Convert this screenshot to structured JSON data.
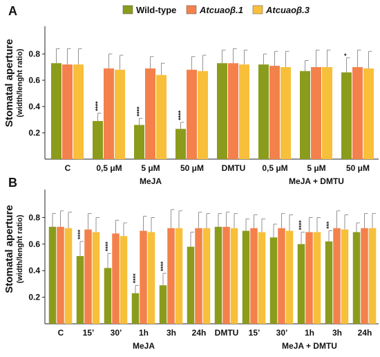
{
  "legend": {
    "placement": "top-center",
    "items": [
      {
        "label": "Wild-type",
        "italic": false,
        "color": "#8b9b1c"
      },
      {
        "label": "Atcuaoβ.1",
        "italic": true,
        "color": "#f4814c"
      },
      {
        "label": "Atcuaoβ.3",
        "italic": true,
        "color": "#f8bf3a"
      }
    ]
  },
  "chart_data": [
    {
      "type": "bar",
      "panel_label": "A",
      "ylabel": "Stomatal aperture",
      "ylabel_sub": "(width/lenght ratio)",
      "ylim": [
        0,
        1.0
      ],
      "yticks": [
        "0.2",
        "0.4",
        "0.6",
        "0.8"
      ],
      "grid": false,
      "categories": [
        "C",
        "0,5 μM",
        "5 μM",
        "50 μM",
        "DMTU",
        "0,5 μM",
        "5 μM",
        "50 μM"
      ],
      "groups": [
        {
          "label": "MeJA",
          "from": 1,
          "to": 3
        },
        {
          "label": "MeJA + DMTU",
          "from": 5,
          "to": 7
        }
      ],
      "series": [
        {
          "name": "Wild-type",
          "values": [
            0.73,
            0.29,
            0.26,
            0.23,
            0.73,
            0.72,
            0.67,
            0.66
          ],
          "errors": [
            0.11,
            0.06,
            0.05,
            0.05,
            0.1,
            0.08,
            0.08,
            0.11
          ],
          "significance": [
            "",
            "****",
            "****",
            "****",
            "",
            "",
            "",
            "*"
          ]
        },
        {
          "name": "Atcuaoβ.1",
          "values": [
            0.72,
            0.69,
            0.69,
            0.68,
            0.73,
            0.71,
            0.7,
            0.7
          ],
          "errors": [
            0.12,
            0.11,
            0.09,
            0.1,
            0.11,
            0.11,
            0.13,
            0.13
          ],
          "significance": [
            "",
            "",
            "",
            "",
            "",
            "",
            "",
            ""
          ]
        },
        {
          "name": "Atcuaoβ.3",
          "values": [
            0.72,
            0.68,
            0.64,
            0.67,
            0.72,
            0.7,
            0.7,
            0.69
          ],
          "errors": [
            0.12,
            0.11,
            0.09,
            0.12,
            0.11,
            0.12,
            0.13,
            0.13
          ],
          "significance": [
            "",
            "",
            "",
            "",
            "",
            "",
            "",
            ""
          ]
        }
      ]
    },
    {
      "type": "bar",
      "panel_label": "B",
      "ylabel": "Stomatal aperture",
      "ylabel_sub": "(width/lenght ratio)",
      "ylim": [
        0,
        1.0
      ],
      "yticks": [
        "0.2",
        "0.4",
        "0.6",
        "0.8"
      ],
      "grid": false,
      "categories": [
        "C",
        "15’",
        "30’",
        "1h",
        "3h",
        "24h",
        "DMTU",
        "15’",
        "30’",
        "1h",
        "3h",
        "24h"
      ],
      "groups": [
        {
          "label": "MeJA",
          "from": 1,
          "to": 5
        },
        {
          "label": "MeJA + DMTU",
          "from": 7,
          "to": 11
        }
      ],
      "series": [
        {
          "name": "Wild-type",
          "values": [
            0.73,
            0.51,
            0.42,
            0.23,
            0.29,
            0.58,
            0.73,
            0.7,
            0.65,
            0.6,
            0.62,
            0.69
          ],
          "errors": [
            0.1,
            0.11,
            0.11,
            0.06,
            0.09,
            0.11,
            0.1,
            0.09,
            0.1,
            0.09,
            0.08,
            0.07
          ],
          "significance": [
            "",
            "****",
            "****",
            "****",
            "****",
            "",
            "",
            "",
            "",
            "****",
            "***",
            ""
          ]
        },
        {
          "name": "Atcuaoβ.1",
          "values": [
            0.73,
            0.71,
            0.68,
            0.7,
            0.72,
            0.72,
            0.73,
            0.72,
            0.72,
            0.69,
            0.72,
            0.72
          ],
          "errors": [
            0.12,
            0.12,
            0.1,
            0.11,
            0.14,
            0.12,
            0.11,
            0.1,
            0.11,
            0.11,
            0.13,
            0.11
          ],
          "significance": [
            "",
            "",
            "",
            "",
            "",
            "",
            "",
            "",
            "",
            "",
            "",
            ""
          ]
        },
        {
          "name": "Atcuaoβ.3",
          "values": [
            0.72,
            0.69,
            0.66,
            0.69,
            0.72,
            0.72,
            0.72,
            0.69,
            0.7,
            0.69,
            0.71,
            0.72
          ],
          "errors": [
            0.12,
            0.11,
            0.1,
            0.11,
            0.13,
            0.11,
            0.11,
            0.1,
            0.12,
            0.11,
            0.11,
            0.11
          ],
          "significance": [
            "",
            "",
            "",
            "",
            "",
            "",
            "",
            "",
            "",
            "",
            "",
            ""
          ]
        }
      ]
    }
  ]
}
